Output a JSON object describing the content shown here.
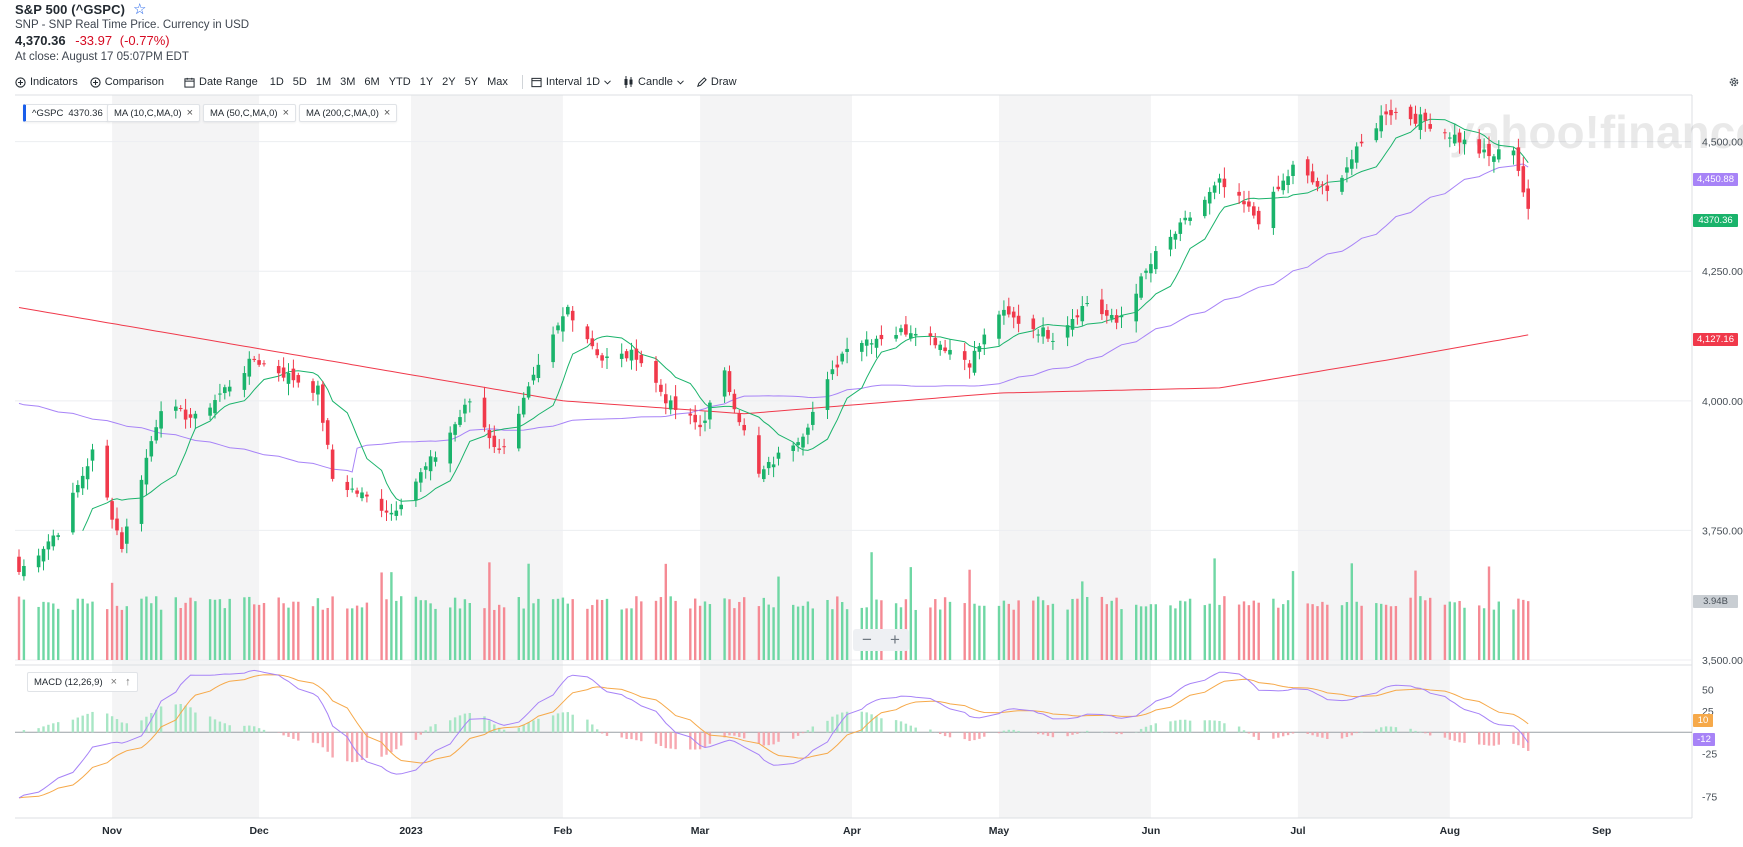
{
  "header": {
    "title": "S&P 500 (^GSPC)",
    "subtitle": "SNP - SNP Real Time Price. Currency in USD",
    "price": "4,370.36",
    "change": "-33.97",
    "change_pct": "(-0.77%)",
    "close_note": "At close: August 17 05:07PM EDT"
  },
  "toolbar": {
    "indicators": "Indicators",
    "comparison": "Comparison",
    "date_range": "Date Range",
    "ranges": [
      "1D",
      "5D",
      "1M",
      "3M",
      "6M",
      "YTD",
      "1Y",
      "2Y",
      "5Y",
      "Max"
    ],
    "interval_label": "Interval",
    "interval_value": "1D",
    "chart_type": "Candle",
    "draw": "Draw"
  },
  "legend_tags": {
    "gspc_name": "^GSPC",
    "gspc_value": "4370.36",
    "ma10": "MA (10,C,MA,0)",
    "ma50": "MA (50,C,MA,0)",
    "ma200": "MA (200,C,MA,0)",
    "macd": "MACD (12,26,9)"
  },
  "watermark": "yahoo!finance",
  "badges": {
    "ma50_value": "4,450.88",
    "last_price": "4370.36",
    "ma200_value": "4,127.16",
    "volume": "3.94B",
    "macd_signal": "10",
    "macd_line": "-12"
  },
  "colors": {
    "up": "#1ab36b",
    "down": "#f0394b",
    "ma10": "#1ab36b",
    "ma50": "#a783f7",
    "ma200": "#f0394b",
    "macd_line": "#a783f7",
    "signal_line": "#f6a94a"
  },
  "chart_data": [
    {
      "type": "candlestick",
      "title": "S&P 500 (^GSPC)",
      "x_ticks": [
        "Nov",
        "Dec",
        "2023",
        "Feb",
        "Mar",
        "Apr",
        "May",
        "Jun",
        "Jul",
        "Aug",
        "Sep"
      ],
      "y_ticks": [
        "4,500.00",
        "4,250.00",
        "4,000.00",
        "3,750.00",
        "3,500.00"
      ],
      "ylim": [
        3500,
        4590
      ],
      "date_range": [
        "2022-10-13",
        "2023-08-17"
      ],
      "close_anchors": [
        [
          "2022-10-13",
          3670
        ],
        [
          "2022-10-21",
          3750
        ],
        [
          "2022-10-28",
          3900
        ],
        [
          "2022-11-03",
          3720
        ],
        [
          "2022-11-11",
          3990
        ],
        [
          "2022-11-18",
          3965
        ],
        [
          "2022-11-30",
          4080
        ],
        [
          "2022-12-13",
          4020
        ],
        [
          "2022-12-16",
          3850
        ],
        [
          "2022-12-28",
          3785
        ],
        [
          "2023-01-06",
          3895
        ],
        [
          "2023-01-13",
          4000
        ],
        [
          "2023-01-19",
          3900
        ],
        [
          "2023-02-02",
          4180
        ],
        [
          "2023-02-09",
          4080
        ],
        [
          "2023-02-16",
          4090
        ],
        [
          "2023-02-23",
          3990
        ],
        [
          "2023-03-01",
          3950
        ],
        [
          "2023-03-06",
          4050
        ],
        [
          "2023-03-13",
          3855
        ],
        [
          "2023-03-22",
          3940
        ],
        [
          "2023-03-31",
          4110
        ],
        [
          "2023-04-14",
          4140
        ],
        [
          "2023-04-25",
          4075
        ],
        [
          "2023-05-01",
          4170
        ],
        [
          "2023-05-12",
          4125
        ],
        [
          "2023-05-19",
          4190
        ],
        [
          "2023-05-25",
          4150
        ],
        [
          "2023-06-02",
          4280
        ],
        [
          "2023-06-15",
          4420
        ],
        [
          "2023-06-23",
          4350
        ],
        [
          "2023-06-30",
          4450
        ],
        [
          "2023-07-07",
          4400
        ],
        [
          "2023-07-19",
          4560
        ],
        [
          "2023-07-27",
          4540
        ],
        [
          "2023-08-02",
          4510
        ],
        [
          "2023-08-09",
          4470
        ],
        [
          "2023-08-14",
          4490
        ],
        [
          "2023-08-16",
          4404
        ],
        [
          "2023-08-17",
          4370
        ]
      ],
      "moving_averages": [
        "MA (10,C,MA,0)",
        "MA (50,C,MA,0)",
        "MA (200,C,MA,0)"
      ],
      "last": {
        "close": 4370.36,
        "ma50": 4450.88,
        "ma200": 4127.16
      }
    },
    {
      "type": "bar",
      "title": "Volume",
      "last_volume": "3.94B"
    },
    {
      "type": "line",
      "title": "MACD (12,26,9)",
      "y_ticks": [
        "50",
        "25",
        "-25",
        "-75"
      ],
      "ylim": [
        -100,
        75
      ],
      "last": {
        "macd": -12,
        "signal": 10
      }
    }
  ]
}
